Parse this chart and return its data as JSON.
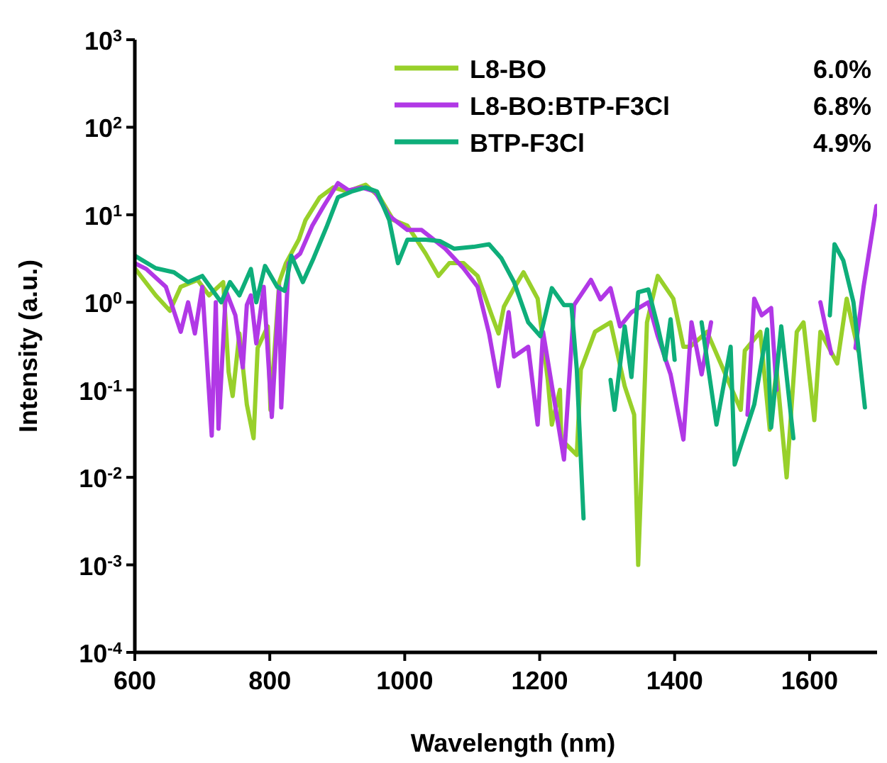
{
  "chart_data": {
    "type": "line",
    "xlabel": "Wavelength (nm)",
    "ylabel": "Intensity (a.u.)",
    "log": "y",
    "xlim": [
      600,
      1700
    ],
    "xticks": [
      600,
      800,
      1000,
      1200,
      1400,
      1600
    ],
    "ylim": [
      0.0001,
      1000
    ],
    "yticks": [
      {
        "value": 0.0001,
        "label": "10$^{-4}$"
      },
      {
        "value": 0.001,
        "label": "10$^{-3}$"
      },
      {
        "value": 0.01,
        "label": "10$^{-2}$"
      },
      {
        "value": 0.1,
        "label": "10$^{-1}$"
      },
      {
        "value": 1,
        "label": "10$^{0}$"
      },
      {
        "value": 10,
        "label": "10$^{1}$"
      },
      {
        "value": 100,
        "label": "10$^{2}$"
      },
      {
        "value": 1000,
        "label": "10$^{3}$"
      }
    ],
    "legend": "top right",
    "grid": false,
    "line_style": "solid",
    "marker": "none",
    "annotations": [
      "6.0%",
      "6.8%",
      "4.9%"
    ],
    "series": [
      {
        "name": "L8-BO",
        "color": "#98d02a",
        "x": [
          600,
          631,
          652,
          668,
          693,
          710,
          731,
          739,
          745,
          755,
          766,
          776,
          782,
          797,
          801,
          814,
          824,
          843,
          853,
          874,
          894,
          915,
          942,
          963,
          983,
          1004,
          1031,
          1050,
          1066,
          1087,
          1108,
          1129,
          1139,
          1147,
          1162,
          1176,
          1197,
          1212,
          1218,
          1230,
          1232,
          1255,
          1261,
          1282,
          1305,
          1326,
          1340,
          1346,
          1359,
          1375,
          1398,
          1413,
          1423,
          1448,
          1498,
          1504,
          1527,
          1541,
          1551,
          1566,
          1581,
          1591,
          1607,
          1616,
          1641,
          1655,
          1672
        ],
        "values": [
          2.45,
          1.2,
          0.8,
          1.5,
          1.8,
          1.2,
          1.7,
          0.16,
          0.085,
          0.44,
          0.068,
          0.028,
          0.3,
          0.53,
          0.059,
          1.7,
          2.8,
          5.2,
          8.7,
          15.8,
          20.5,
          18.4,
          22,
          15.8,
          8.7,
          7.5,
          3.6,
          2.0,
          2.8,
          2.8,
          2.0,
          0.71,
          0.44,
          0.89,
          1.45,
          2.2,
          1.1,
          0.13,
          0.04,
          0.1,
          0.027,
          0.018,
          0.17,
          0.46,
          0.59,
          0.11,
          0.052,
          0.001,
          0.59,
          2.0,
          1.1,
          0.31,
          0.31,
          0.46,
          0.059,
          0.28,
          0.46,
          0.035,
          0.17,
          0.01,
          0.46,
          0.59,
          0.045,
          0.46,
          0.2,
          1.1,
          0.28
        ]
      },
      {
        "name": "L8-BO:BTP-F3Cl",
        "color": "#b138e6",
        "x": [
          600,
          617,
          646,
          668,
          679,
          689,
          700,
          714,
          720,
          724,
          735,
          749,
          760,
          766,
          772,
          780,
          791,
          803,
          814,
          817,
          828,
          845,
          863,
          880,
          901,
          917,
          936,
          956,
          977,
          1004,
          1025,
          1060,
          1087,
          1108,
          1125,
          1139,
          1154,
          1162,
          1183,
          1197,
          1205,
          1236,
          1251,
          1276,
          1290,
          1305,
          1319,
          1336,
          1361,
          1375,
          1394,
          1413,
          1425,
          1440,
          1454,
          1480,
          1508,
          1518,
          1529,
          1543,
          1551,
          1580,
          1616,
          1632,
          1650,
          1668,
          1680,
          1699
        ],
        "values": [
          2.8,
          2.4,
          1.5,
          0.46,
          1.0,
          0.44,
          1.5,
          0.03,
          1.0,
          0.036,
          1.35,
          0.71,
          0.18,
          0.93,
          1.2,
          0.34,
          1.5,
          0.049,
          1.5,
          0.063,
          2.8,
          3.6,
          7.5,
          12.6,
          23,
          19,
          20.5,
          18.4,
          9.7,
          6.7,
          6.7,
          4.1,
          2.45,
          1.5,
          0.44,
          0.11,
          0.77,
          0.24,
          0.31,
          0.04,
          0.46,
          0.016,
          0.93,
          1.8,
          1.08,
          1.45,
          0.53,
          0.77,
          1.0,
          0.41,
          0.15,
          0.027,
          0.59,
          0.15,
          0.59,
          null,
          0.052,
          1.1,
          0.71,
          0.86,
          0.1,
          null,
          1.0,
          0.26,
          null,
          0.3,
          1.5,
          12.6
        ]
      },
      {
        "name": "BTP-F3Cl",
        "color": "#0eae7a",
        "x": [
          600,
          631,
          658,
          679,
          700,
          728,
          741,
          755,
          772,
          780,
          793,
          811,
          822,
          832,
          849,
          865,
          884,
          901,
          921,
          942,
          959,
          977,
          990,
          1004,
          1031,
          1052,
          1073,
          1102,
          1125,
          1143,
          1162,
          1183,
          1201,
          1218,
          1236,
          1247,
          1255,
          1265,
          1290,
          1305,
          1311,
          1326,
          1336,
          1346,
          1361,
          1375,
          1386,
          1394,
          1400,
          1420,
          1440,
          1462,
          1483,
          1489,
          1518,
          1537,
          1543,
          1558,
          1576,
          1600,
          1630,
          1637,
          1650,
          1665,
          1682
        ],
        "values": [
          3.4,
          2.45,
          2.2,
          1.7,
          2.0,
          1.0,
          1.7,
          1.2,
          2.4,
          1.0,
          2.6,
          1.5,
          1.35,
          3.4,
          1.7,
          3.2,
          7.2,
          15.8,
          18.4,
          20.5,
          18.4,
          8.7,
          2.8,
          5.2,
          5.2,
          5.0,
          4.1,
          4.3,
          4.6,
          3.2,
          1.7,
          0.59,
          0.41,
          1.45,
          0.93,
          0.93,
          0.17,
          0.0034,
          null,
          0.13,
          0.059,
          0.53,
          0.14,
          1.3,
          1.4,
          0.53,
          0.22,
          0.64,
          0.22,
          null,
          0.59,
          0.04,
          0.31,
          0.014,
          0.068,
          0.49,
          0.037,
          0.53,
          0.028,
          null,
          0.71,
          4.6,
          3.0,
          1.0,
          0.063
        ]
      }
    ]
  }
}
